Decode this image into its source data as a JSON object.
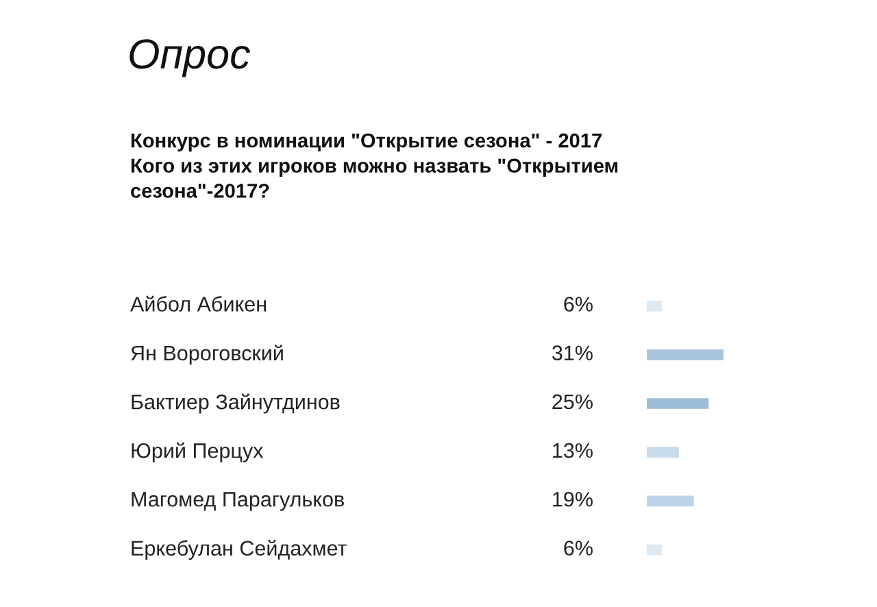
{
  "chart_data": {
    "type": "bar",
    "orientation": "horizontal",
    "title": "Опрос",
    "subtitle": "Конкурс в номинации \"Открытие сезона\" - 2017\nКого из этих игроков можно назвать \"Открытием\nсезона\"-2017?",
    "categories": [
      "Айбол Абикен",
      "Ян Вороговский",
      "Бактиер Зайнутдинов",
      "Юрий Перцух",
      "Магомед Парагульков",
      "Еркебулан Сейдахмет"
    ],
    "values": [
      6,
      31,
      25,
      13,
      19,
      6
    ],
    "value_labels": [
      "6%",
      "31%",
      "25%",
      "13%",
      "19%",
      "6%"
    ],
    "colors": [
      "#dde9f2",
      "#a8c4dd",
      "#9dbdd8",
      "#c9dcec",
      "#bcd3e8",
      "#dde9f2"
    ]
  }
}
